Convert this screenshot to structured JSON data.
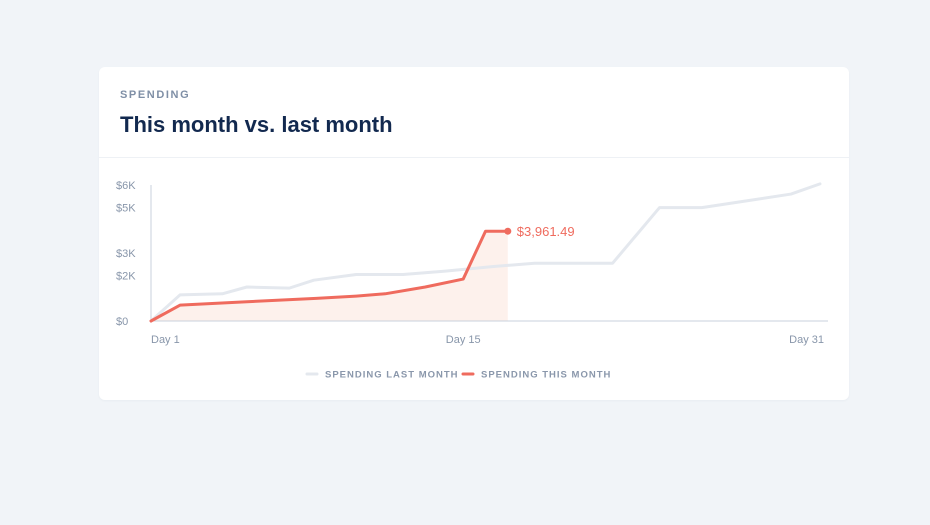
{
  "card": {
    "eyebrow": "SPENDING",
    "title": "This month vs. last month"
  },
  "colors": {
    "this_month": "#ef6b5e",
    "last_month": "#e4e8ee",
    "area_fill": "#fdf1ec",
    "axis": "#c9d1dc"
  },
  "chart_data": {
    "type": "line",
    "title": "This month vs. last month",
    "xlabel": "",
    "ylabel": "",
    "xlim": [
      1,
      31
    ],
    "ylim": [
      0,
      6000
    ],
    "y_ticks": [
      {
        "value": 0,
        "label": "$0"
      },
      {
        "value": 2000,
        "label": "$2K"
      },
      {
        "value": 3000,
        "label": "$3K"
      },
      {
        "value": 5000,
        "label": "$5K"
      },
      {
        "value": 6000,
        "label": "$6K"
      }
    ],
    "x_ticks": [
      {
        "value": 1,
        "label": "Day 1"
      },
      {
        "value": 15,
        "label": "Day 15"
      },
      {
        "value": 31,
        "label": "Day 31"
      }
    ],
    "grid": false,
    "legend": "bottom-center",
    "series": [
      {
        "name": "SPENDING LAST MONTH",
        "x": [
          1,
          2.3,
          4.2,
          5.3,
          7.2,
          8.3,
          10.2,
          12.3,
          14.2,
          16.3,
          18.2,
          20.2,
          21.7,
          23.8,
          25.7,
          27.7,
          29.7,
          31
        ],
        "y": [
          0,
          1150,
          1200,
          1500,
          1450,
          1800,
          2050,
          2050,
          2200,
          2400,
          2550,
          2550,
          2550,
          5000,
          5000,
          5300,
          5600,
          6050
        ]
      },
      {
        "name": "SPENDING THIS MONTH",
        "x": [
          1,
          2.3,
          5.3,
          8.4,
          10.2,
          11.5,
          13.3,
          15.0,
          16.0,
          17.0
        ],
        "y": [
          0,
          700,
          850,
          1000,
          1100,
          1200,
          1500,
          1850,
          3961.49,
          3961.49
        ]
      }
    ],
    "annotations": [
      {
        "x": 17.0,
        "y": 3961.49,
        "label": "$3,961.49"
      }
    ]
  }
}
